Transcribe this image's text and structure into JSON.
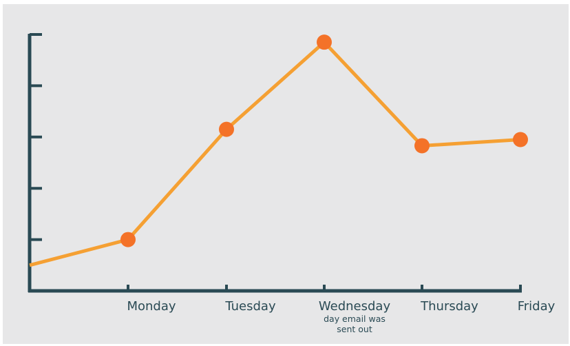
{
  "chart_data": {
    "type": "line",
    "title": "",
    "xlabel": "",
    "ylabel": "",
    "categories": [
      "Monday",
      "Tuesday",
      "Wednesday",
      "Thursday",
      "Friday"
    ],
    "series": [
      {
        "values": [
          1,
          3.15,
          4.85,
          2.83,
          2.95
        ],
        "color": "#f5a033",
        "marker_color": "#f47228"
      }
    ],
    "line_start_value": 0.5,
    "ylim": [
      0,
      5
    ],
    "y_ticks": [
      0,
      1,
      2,
      3,
      4,
      5
    ],
    "y_tick_labels_shown": false,
    "grid": false,
    "legend": "none",
    "axis_color": "#2a4a54",
    "annotation": {
      "category": "Wednesday",
      "lines": [
        "day email was",
        "sent out"
      ]
    }
  }
}
